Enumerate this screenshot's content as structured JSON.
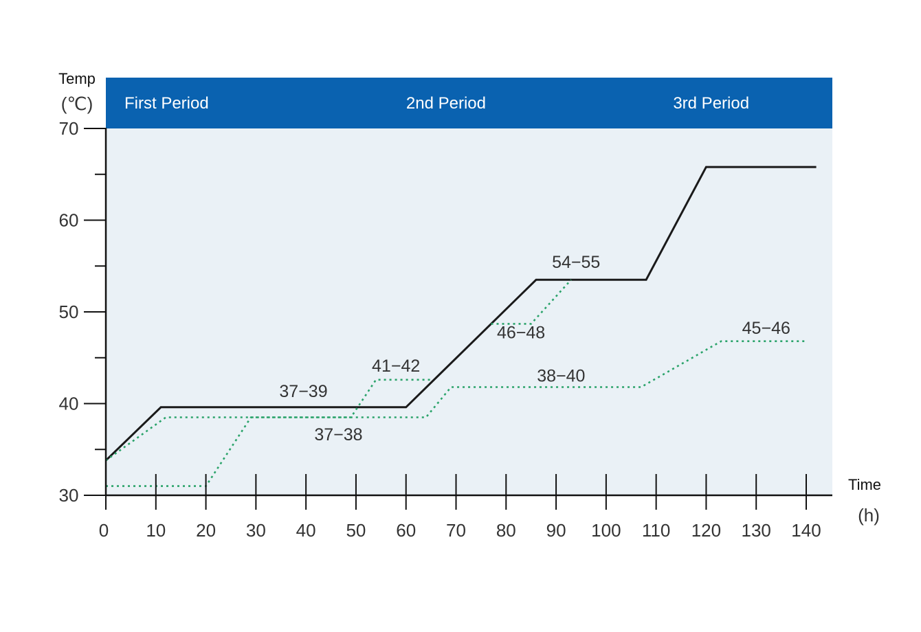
{
  "colors": {
    "band": "#0a62b0",
    "plot_bg": "#eaf1f6",
    "axis": "#111111",
    "solid_line": "#1a1a1a",
    "dotted_line": "#2aa36a"
  },
  "header": {
    "periods": [
      "First Period",
      "2nd Period",
      "3rd Period"
    ]
  },
  "axes": {
    "y_title": "Temp",
    "y_unit": "(℃)",
    "x_title": "Time",
    "x_unit": "(h)"
  },
  "chart_data": {
    "type": "line",
    "title": "",
    "xlabel": "Time",
    "ylabel": "Temp",
    "xlim": [
      0,
      145
    ],
    "ylim": [
      30,
      70
    ],
    "x_ticks": [
      0,
      10,
      20,
      30,
      40,
      50,
      60,
      70,
      80,
      90,
      100,
      110,
      120,
      130,
      140
    ],
    "y_ticks_labeled": [
      30,
      40,
      50,
      60,
      70
    ],
    "y_ticks_minor": [
      35,
      45,
      55,
      65
    ],
    "grid": false,
    "periods": [
      {
        "label": "First Period",
        "label_x": 14
      },
      {
        "label": "2nd Period",
        "label_x": 68
      },
      {
        "label": "3rd Period",
        "label_x": 121
      }
    ],
    "series": [
      {
        "style": "solid",
        "points": [
          [
            0,
            33.8
          ],
          [
            11,
            39.6
          ],
          [
            60,
            39.6
          ],
          [
            86,
            53.5
          ],
          [
            108,
            53.5
          ],
          [
            120,
            65.8
          ],
          [
            142,
            65.8
          ]
        ]
      },
      {
        "style": "dotted",
        "points": [
          [
            0,
            33.8
          ],
          [
            12,
            38.5
          ],
          [
            64,
            38.5
          ],
          [
            69,
            41.8
          ],
          [
            107,
            41.8
          ],
          [
            123,
            46.8
          ],
          [
            140,
            46.8
          ]
        ]
      },
      {
        "style": "dotted",
        "points": [
          [
            0,
            31
          ],
          [
            20,
            31
          ],
          [
            29,
            38.5
          ],
          [
            49,
            38.5
          ],
          [
            54,
            42.6
          ],
          [
            65,
            42.6
          ]
        ]
      },
      {
        "style": "dotted",
        "points": [
          [
            77,
            48.7
          ],
          [
            85,
            48.7
          ],
          [
            93,
            53.5
          ]
        ]
      }
    ],
    "annotations": [
      {
        "text": "37−39",
        "x": 39.5,
        "y": 40.7
      },
      {
        "text": "37−38",
        "x": 46.5,
        "y": 36.0
      },
      {
        "text": "41−42",
        "x": 58,
        "y": 43.5
      },
      {
        "text": "38−40",
        "x": 91,
        "y": 42.4
      },
      {
        "text": "46−48",
        "x": 83,
        "y": 47.1
      },
      {
        "text": "54−55",
        "x": 94,
        "y": 54.8
      },
      {
        "text": "45−46",
        "x": 132,
        "y": 47.6
      }
    ]
  }
}
